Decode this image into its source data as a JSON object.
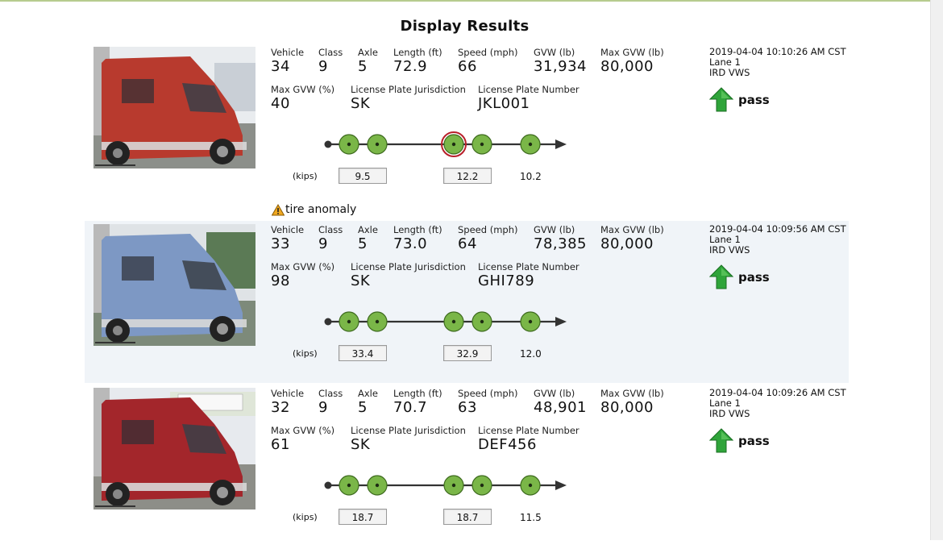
{
  "page": {
    "title": "Display Results"
  },
  "labels": {
    "vehicle": "Vehicle",
    "class": "Class",
    "axle": "Axle",
    "length": "Length (ft)",
    "speed": "Speed (mph)",
    "gvw": "GVW (lb)",
    "max_gvw": "Max GVW (lb)",
    "max_gvw_pct": "Max GVW (%)",
    "plate_jurisdiction": "License Plate Jurisdiction",
    "plate_number": "License Plate Number",
    "kips": "(kips)"
  },
  "records": [
    {
      "vehicle": "34",
      "class": "9",
      "axle": "5",
      "length": "72.9",
      "speed": "66",
      "gvw": "31,934",
      "max_gvw": "80,000",
      "max_gvw_pct": "40",
      "plate_jurisdiction": "SK",
      "plate_number": "JKL001",
      "timestamp": "2019-04-04 10:10:26 AM CST",
      "lane": "Lane 1",
      "device": "IRD VWS",
      "status": "pass",
      "status_icon": "green-up-arrow-icon",
      "truck_color": "#b83a2e",
      "weights": [
        "9.5",
        "12.2",
        "10.2"
      ],
      "highlighted_axle": 3
    },
    {
      "vehicle": "33",
      "class": "9",
      "axle": "5",
      "length": "73.0",
      "speed": "64",
      "gvw": "78,385",
      "max_gvw": "80,000",
      "max_gvw_pct": "98",
      "plate_jurisdiction": "SK",
      "plate_number": "GHI789",
      "timestamp": "2019-04-04 10:09:56 AM CST",
      "lane": "Lane 1",
      "device": "IRD VWS",
      "status": "pass",
      "status_icon": "green-up-arrow-icon",
      "truck_color": "#7d98c4",
      "weights": [
        "33.4",
        "32.9",
        "12.0"
      ],
      "highlighted_axle": -1
    },
    {
      "vehicle": "32",
      "class": "9",
      "axle": "5",
      "length": "70.7",
      "speed": "63",
      "gvw": "48,901",
      "max_gvw": "80,000",
      "max_gvw_pct": "61",
      "plate_jurisdiction": "SK",
      "plate_number": "DEF456",
      "timestamp": "2019-04-04 10:09:26 AM CST",
      "lane": "Lane 1",
      "device": "IRD VWS",
      "status": "pass",
      "status_icon": "green-up-arrow-icon",
      "truck_color": "#a3262b",
      "weights": [
        "18.7",
        "18.7",
        "11.5"
      ],
      "highlighted_axle": -1
    }
  ],
  "anomaly": {
    "text": "tire anomaly",
    "icon": "warning-triangle-icon"
  }
}
